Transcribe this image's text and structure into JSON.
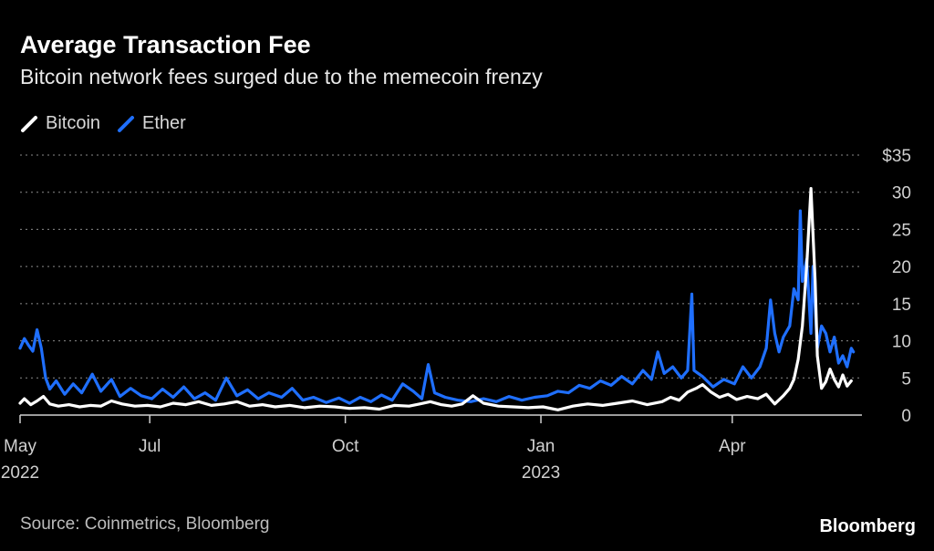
{
  "header": {
    "title": "Average Transaction Fee",
    "subtitle": "Bitcoin network fees surged due to the memecoin frenzy"
  },
  "footer": {
    "source": "Source: Coinmetrics, Bloomberg",
    "brand": "Bloomberg"
  },
  "colors": {
    "background": "#000000",
    "bitcoin": "#ffffff",
    "ether": "#1f6fff",
    "grid": "#8a8a8a",
    "axis_text": "#d0d0d0"
  },
  "chart_data": {
    "type": "line",
    "title": "Average Transaction Fee",
    "subtitle": "Bitcoin network fees surged due to the memecoin frenzy",
    "xlabel": "",
    "ylabel": "",
    "ylim": [
      0,
      35
    ],
    "yticks": [
      0,
      5,
      10,
      15,
      20,
      25,
      30,
      35
    ],
    "ytick_labels": [
      "0",
      "5",
      "10",
      "15",
      "20",
      "25",
      "30",
      "$35"
    ],
    "y_axis_side": "right",
    "grid": "horizontal dotted",
    "legend": "top-left",
    "xlim": [
      "2022-05-01",
      "2023-06-01"
    ],
    "xticks": [
      {
        "date": "2022-05-01",
        "label": "May",
        "sublabel": "2022"
      },
      {
        "date": "2022-07-01",
        "label": "Jul",
        "sublabel": ""
      },
      {
        "date": "2022-10-01",
        "label": "Oct",
        "sublabel": ""
      },
      {
        "date": "2023-01-01",
        "label": "Jan",
        "sublabel": "2023"
      },
      {
        "date": "2023-04-01",
        "label": "Apr",
        "sublabel": ""
      }
    ],
    "series": [
      {
        "name": "Bitcoin",
        "color": "#ffffff",
        "points": [
          [
            "2022-05-01",
            1.6
          ],
          [
            "2022-05-03",
            2.2
          ],
          [
            "2022-05-06",
            1.4
          ],
          [
            "2022-05-09",
            1.9
          ],
          [
            "2022-05-12",
            2.5
          ],
          [
            "2022-05-15",
            1.5
          ],
          [
            "2022-05-19",
            1.2
          ],
          [
            "2022-05-24",
            1.4
          ],
          [
            "2022-05-29",
            1.1
          ],
          [
            "2022-06-03",
            1.3
          ],
          [
            "2022-06-08",
            1.2
          ],
          [
            "2022-06-13",
            1.9
          ],
          [
            "2022-06-18",
            1.5
          ],
          [
            "2022-06-24",
            1.2
          ],
          [
            "2022-06-30",
            1.3
          ],
          [
            "2022-07-06",
            1.1
          ],
          [
            "2022-07-12",
            1.6
          ],
          [
            "2022-07-18",
            1.4
          ],
          [
            "2022-07-24",
            1.8
          ],
          [
            "2022-07-30",
            1.3
          ],
          [
            "2022-08-05",
            1.5
          ],
          [
            "2022-08-11",
            1.8
          ],
          [
            "2022-08-17",
            1.2
          ],
          [
            "2022-08-23",
            1.4
          ],
          [
            "2022-08-29",
            1.1
          ],
          [
            "2022-09-05",
            1.3
          ],
          [
            "2022-09-12",
            1.0
          ],
          [
            "2022-09-19",
            1.2
          ],
          [
            "2022-09-26",
            1.1
          ],
          [
            "2022-10-03",
            0.9
          ],
          [
            "2022-10-10",
            1.0
          ],
          [
            "2022-10-17",
            0.8
          ],
          [
            "2022-10-24",
            1.3
          ],
          [
            "2022-10-31",
            1.2
          ],
          [
            "2022-11-05",
            1.5
          ],
          [
            "2022-11-10",
            1.8
          ],
          [
            "2022-11-15",
            1.4
          ],
          [
            "2022-11-20",
            1.2
          ],
          [
            "2022-11-25",
            1.5
          ],
          [
            "2022-11-30",
            2.6
          ],
          [
            "2022-12-05",
            1.6
          ],
          [
            "2022-12-12",
            1.2
          ],
          [
            "2022-12-19",
            1.1
          ],
          [
            "2022-12-26",
            1.0
          ],
          [
            "2023-01-02",
            1.1
          ],
          [
            "2023-01-09",
            0.7
          ],
          [
            "2023-01-16",
            1.2
          ],
          [
            "2023-01-23",
            1.5
          ],
          [
            "2023-01-30",
            1.3
          ],
          [
            "2023-02-06",
            1.6
          ],
          [
            "2023-02-13",
            1.9
          ],
          [
            "2023-02-20",
            1.4
          ],
          [
            "2023-02-27",
            1.8
          ],
          [
            "2023-03-03",
            2.4
          ],
          [
            "2023-03-07",
            2.0
          ],
          [
            "2023-03-11",
            3.1
          ],
          [
            "2023-03-15",
            3.6
          ],
          [
            "2023-03-18",
            4.1
          ],
          [
            "2023-03-22",
            3.1
          ],
          [
            "2023-03-26",
            2.4
          ],
          [
            "2023-03-30",
            2.8
          ],
          [
            "2023-04-03",
            2.1
          ],
          [
            "2023-04-08",
            2.5
          ],
          [
            "2023-04-13",
            2.2
          ],
          [
            "2023-04-17",
            2.8
          ],
          [
            "2023-04-21",
            1.5
          ],
          [
            "2023-04-25",
            2.6
          ],
          [
            "2023-04-28",
            3.6
          ],
          [
            "2023-04-30",
            4.8
          ],
          [
            "2023-05-02",
            7.5
          ],
          [
            "2023-05-04",
            12.0
          ],
          [
            "2023-05-06",
            20.0
          ],
          [
            "2023-05-08",
            30.5
          ],
          [
            "2023-05-10",
            18.0
          ],
          [
            "2023-05-11",
            8.0
          ],
          [
            "2023-05-13",
            3.6
          ],
          [
            "2023-05-15",
            4.5
          ],
          [
            "2023-05-17",
            6.2
          ],
          [
            "2023-05-19",
            4.8
          ],
          [
            "2023-05-21",
            3.8
          ],
          [
            "2023-05-23",
            5.4
          ],
          [
            "2023-05-25",
            3.9
          ],
          [
            "2023-05-27",
            4.6
          ]
        ]
      },
      {
        "name": "Ether",
        "color": "#1f6fff",
        "points": [
          [
            "2022-05-01",
            9.0
          ],
          [
            "2022-05-03",
            10.3
          ],
          [
            "2022-05-05",
            9.4
          ],
          [
            "2022-05-07",
            8.6
          ],
          [
            "2022-05-09",
            11.5
          ],
          [
            "2022-05-11",
            9.0
          ],
          [
            "2022-05-13",
            5.0
          ],
          [
            "2022-05-15",
            3.5
          ],
          [
            "2022-05-18",
            4.6
          ],
          [
            "2022-05-22",
            2.8
          ],
          [
            "2022-05-26",
            4.2
          ],
          [
            "2022-05-30",
            3.0
          ],
          [
            "2022-06-04",
            5.5
          ],
          [
            "2022-06-08",
            3.2
          ],
          [
            "2022-06-13",
            4.8
          ],
          [
            "2022-06-17",
            2.5
          ],
          [
            "2022-06-22",
            3.6
          ],
          [
            "2022-06-27",
            2.6
          ],
          [
            "2022-07-02",
            2.2
          ],
          [
            "2022-07-07",
            3.5
          ],
          [
            "2022-07-12",
            2.4
          ],
          [
            "2022-07-17",
            3.8
          ],
          [
            "2022-07-22",
            2.2
          ],
          [
            "2022-07-27",
            3.0
          ],
          [
            "2022-08-01",
            2.0
          ],
          [
            "2022-08-06",
            5.0
          ],
          [
            "2022-08-11",
            2.6
          ],
          [
            "2022-08-16",
            3.4
          ],
          [
            "2022-08-21",
            2.2
          ],
          [
            "2022-08-26",
            3.0
          ],
          [
            "2022-09-01",
            2.4
          ],
          [
            "2022-09-06",
            3.6
          ],
          [
            "2022-09-11",
            2.0
          ],
          [
            "2022-09-16",
            2.4
          ],
          [
            "2022-09-22",
            1.7
          ],
          [
            "2022-09-28",
            2.3
          ],
          [
            "2022-10-03",
            1.6
          ],
          [
            "2022-10-08",
            2.4
          ],
          [
            "2022-10-13",
            1.8
          ],
          [
            "2022-10-18",
            2.7
          ],
          [
            "2022-10-23",
            2.0
          ],
          [
            "2022-10-28",
            4.2
          ],
          [
            "2022-11-02",
            3.2
          ],
          [
            "2022-11-06",
            2.2
          ],
          [
            "2022-11-09",
            6.8
          ],
          [
            "2022-11-12",
            3.0
          ],
          [
            "2022-11-17",
            2.4
          ],
          [
            "2022-11-23",
            2.0
          ],
          [
            "2022-11-29",
            1.8
          ],
          [
            "2022-12-05",
            2.2
          ],
          [
            "2022-12-11",
            1.8
          ],
          [
            "2022-12-17",
            2.5
          ],
          [
            "2022-12-23",
            2.0
          ],
          [
            "2022-12-29",
            2.4
          ],
          [
            "2023-01-04",
            2.6
          ],
          [
            "2023-01-09",
            3.2
          ],
          [
            "2023-01-14",
            3.0
          ],
          [
            "2023-01-19",
            4.0
          ],
          [
            "2023-01-24",
            3.6
          ],
          [
            "2023-01-29",
            4.6
          ],
          [
            "2023-02-03",
            4.0
          ],
          [
            "2023-02-08",
            5.2
          ],
          [
            "2023-02-13",
            4.2
          ],
          [
            "2023-02-18",
            6.0
          ],
          [
            "2023-02-22",
            4.8
          ],
          [
            "2023-02-25",
            8.5
          ],
          [
            "2023-02-28",
            5.6
          ],
          [
            "2023-03-04",
            6.5
          ],
          [
            "2023-03-08",
            5.0
          ],
          [
            "2023-03-11",
            6.0
          ],
          [
            "2023-03-13",
            16.3
          ],
          [
            "2023-03-14",
            6.0
          ],
          [
            "2023-03-18",
            5.2
          ],
          [
            "2023-03-23",
            3.8
          ],
          [
            "2023-03-28",
            4.8
          ],
          [
            "2023-04-02",
            4.2
          ],
          [
            "2023-04-06",
            6.5
          ],
          [
            "2023-04-10",
            5.0
          ],
          [
            "2023-04-14",
            6.5
          ],
          [
            "2023-04-17",
            9.0
          ],
          [
            "2023-04-19",
            15.5
          ],
          [
            "2023-04-21",
            11.0
          ],
          [
            "2023-04-23",
            8.5
          ],
          [
            "2023-04-25",
            10.5
          ],
          [
            "2023-04-28",
            12.0
          ],
          [
            "2023-04-30",
            17.0
          ],
          [
            "2023-05-02",
            15.5
          ],
          [
            "2023-05-03",
            27.5
          ],
          [
            "2023-05-04",
            18.0
          ],
          [
            "2023-05-06",
            21.0
          ],
          [
            "2023-05-08",
            11.0
          ],
          [
            "2023-05-09",
            20.0
          ],
          [
            "2023-05-11",
            9.0
          ],
          [
            "2023-05-13",
            12.0
          ],
          [
            "2023-05-15",
            11.0
          ],
          [
            "2023-05-17",
            8.5
          ],
          [
            "2023-05-19",
            10.5
          ],
          [
            "2023-05-21",
            7.0
          ],
          [
            "2023-05-23",
            8.0
          ],
          [
            "2023-05-25",
            6.5
          ],
          [
            "2023-05-27",
            9.0
          ],
          [
            "2023-05-28",
            8.5
          ]
        ]
      }
    ]
  }
}
